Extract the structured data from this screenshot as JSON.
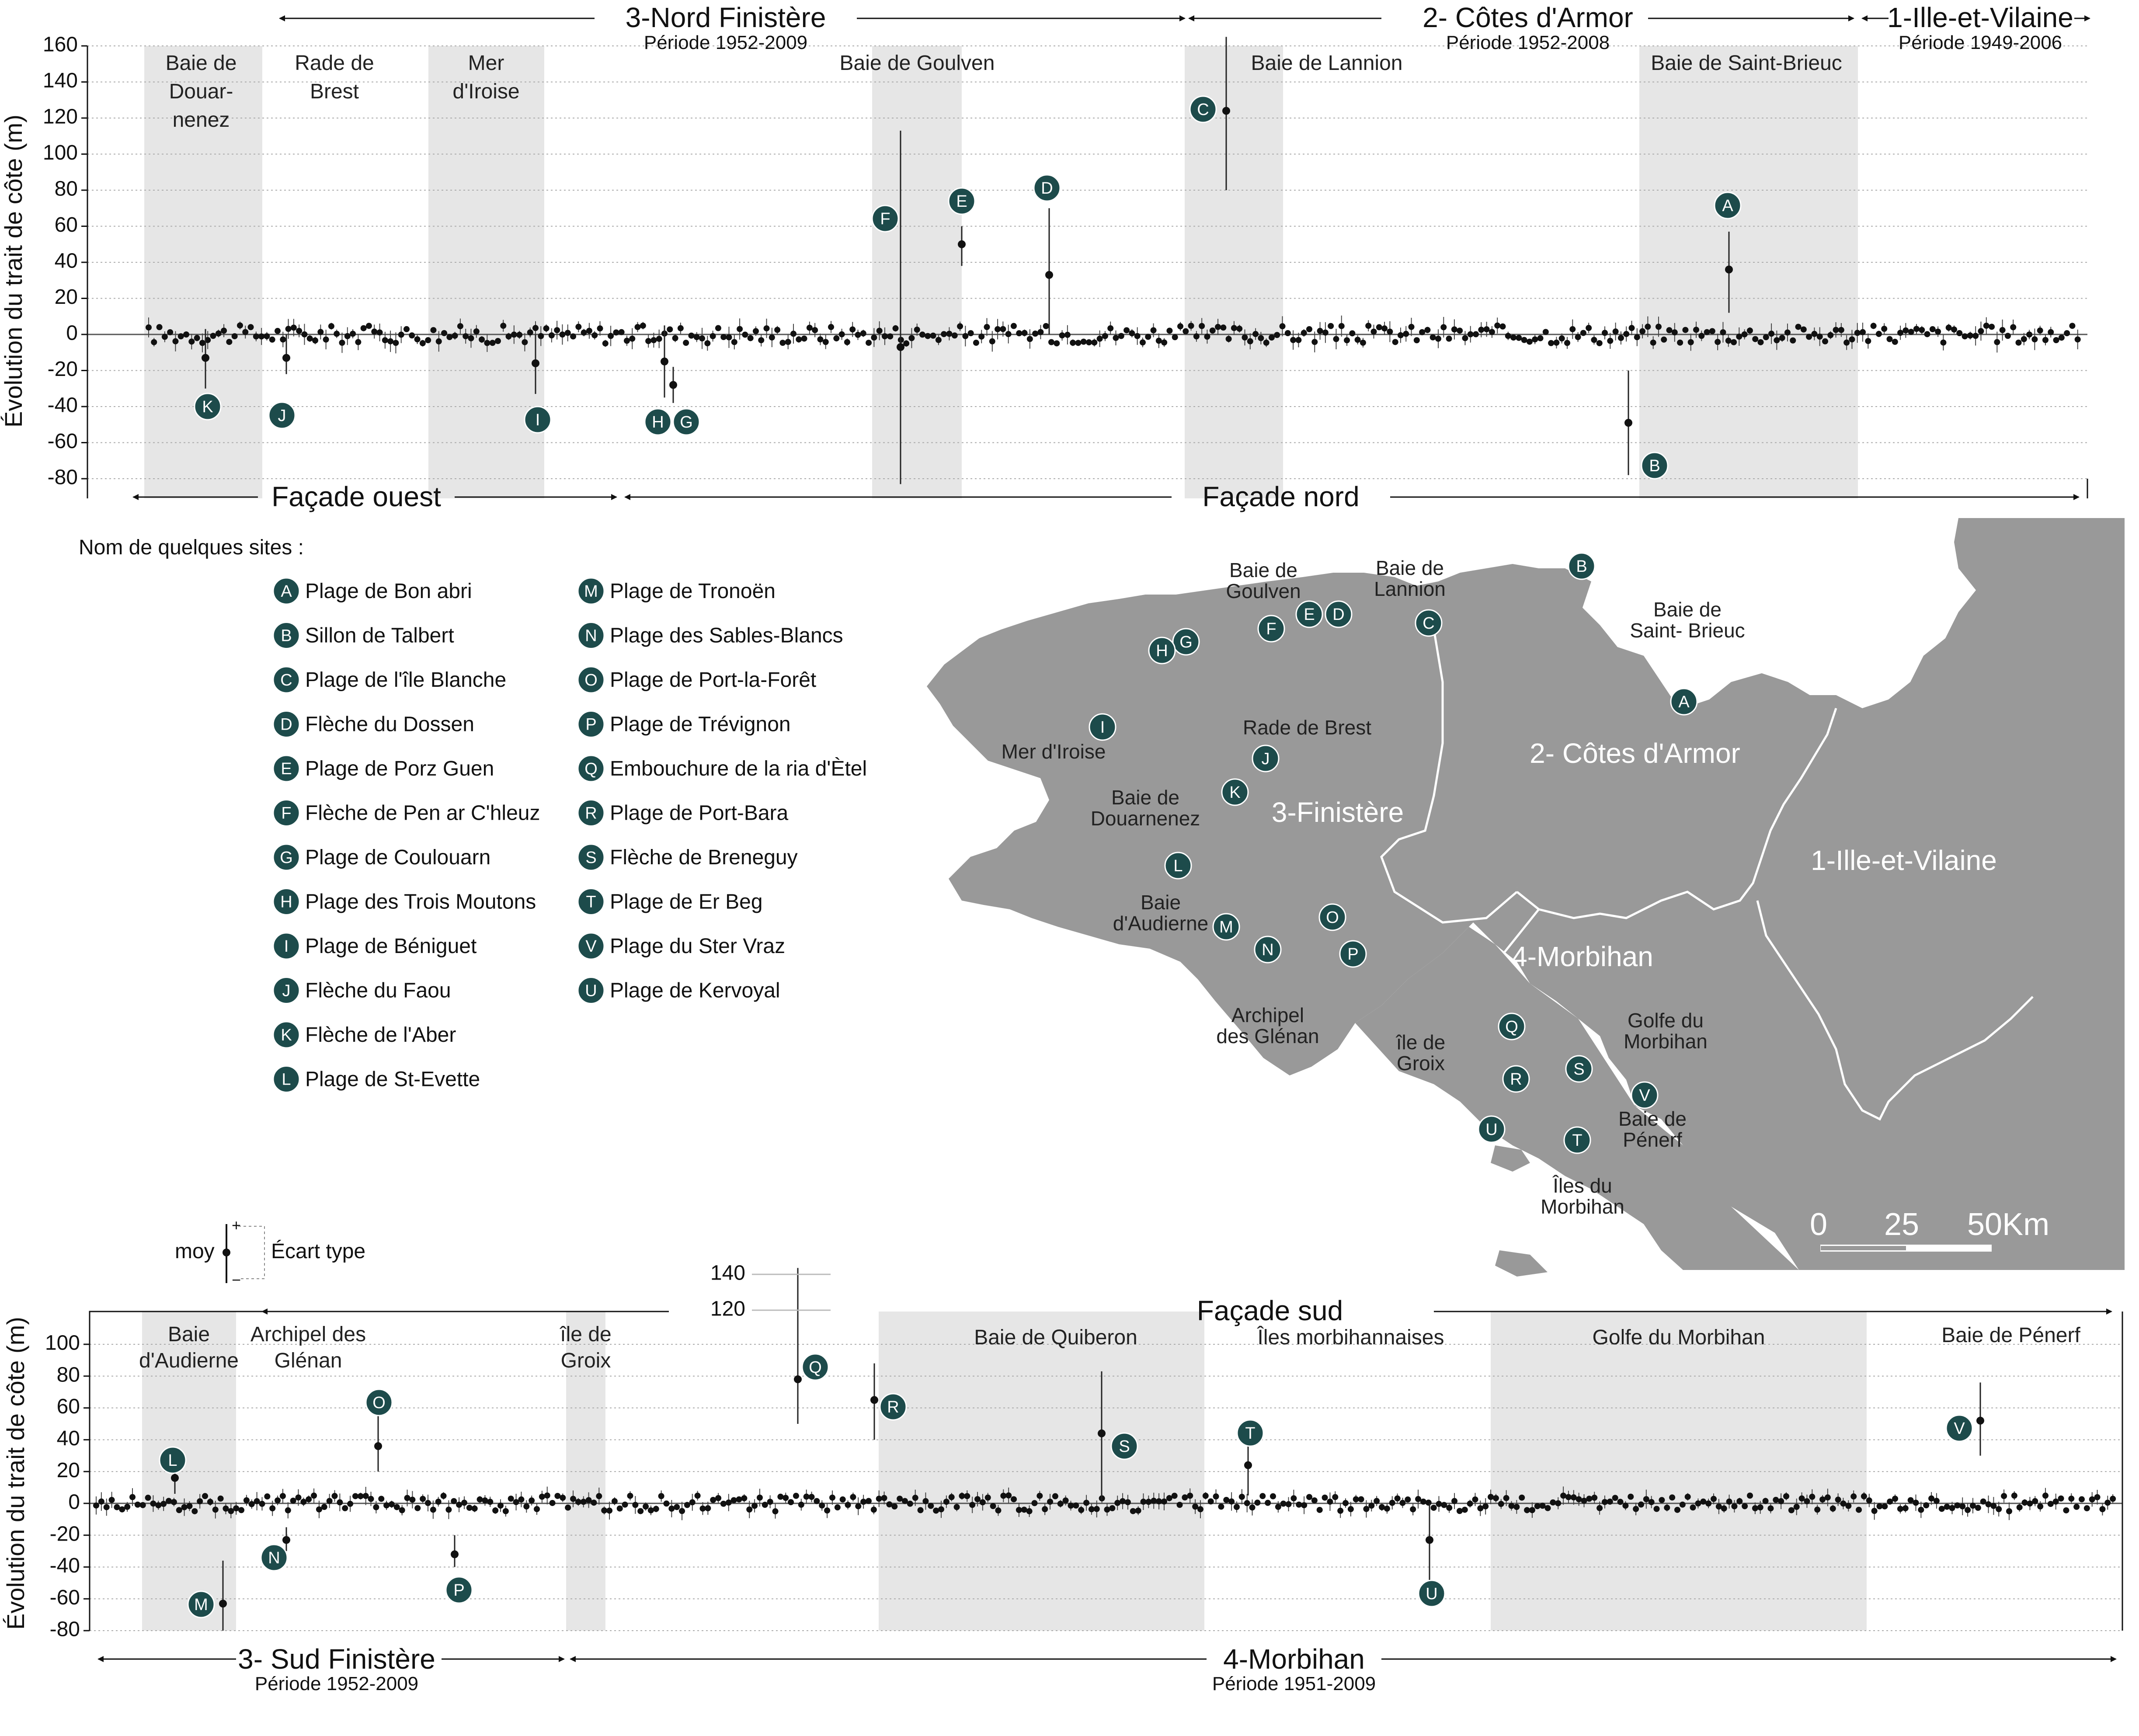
{
  "legend": {
    "title": "Nom de quelques sites :",
    "sites": [
      {
        "code": "A",
        "name": "Plage de Bon abri"
      },
      {
        "code": "B",
        "name": "Sillon de Talbert"
      },
      {
        "code": "C",
        "name": "Plage de l'île Blanche"
      },
      {
        "code": "D",
        "name": "Flèche du Dossen"
      },
      {
        "code": "E",
        "name": "Plage de Porz Guen"
      },
      {
        "code": "F",
        "name": "Flèche de Pen ar C'hleuz"
      },
      {
        "code": "G",
        "name": "Plage de Coulouarn"
      },
      {
        "code": "H",
        "name": "Plage des Trois Moutons"
      },
      {
        "code": "I",
        "name": "Plage de Béniguet"
      },
      {
        "code": "J",
        "name": "Flèche du Faou"
      },
      {
        "code": "K",
        "name": "Flèche de l'Aber"
      },
      {
        "code": "L",
        "name": "Plage de St-Evette"
      },
      {
        "code": "M",
        "name": "Plage de Tronoën"
      },
      {
        "code": "N",
        "name": "Plage des Sables-Blancs"
      },
      {
        "code": "O",
        "name": "Plage de Port-la-Forêt"
      },
      {
        "code": "P",
        "name": "Plage de Trévignon"
      },
      {
        "code": "Q",
        "name": "Embouchure de la ria d'Ètel"
      },
      {
        "code": "R",
        "name": "Plage de Port-Bara"
      },
      {
        "code": "S",
        "name": "Flèche de Breneguy"
      },
      {
        "code": "T",
        "name": "Plage de Er Beg"
      },
      {
        "code": "V",
        "name": "Plage du Ster Vraz"
      },
      {
        "code": "U",
        "name": "Plage de Kervoyal"
      }
    ],
    "key": {
      "mean": "moy",
      "stddev": "Écart type",
      "plus": "+",
      "minus": "−"
    }
  },
  "map": {
    "departments": [
      "2- Côtes d'Armor",
      "3-Finistère",
      "4-Morbihan",
      "1-Ille-et-Vilaine"
    ],
    "places": [
      "Baie de Goulven",
      "Baie de Lannion",
      "Baie de Saint- Brieuc",
      "Rade de Brest",
      "Mer d'Iroise",
      "Baie de Douarnenez",
      "Baie d'Audierne",
      "Archipel des Glénan",
      "île de Groix",
      "Golfe du Morbihan",
      "Baie de Pénerf",
      "Îles du Morbihan"
    ],
    "scale": [
      "0",
      "25",
      "50Km"
    ],
    "colors": {
      "land": "#999999",
      "badge": "#1d4b4b"
    }
  },
  "chart_data": [
    {
      "type": "scatter",
      "title": "",
      "ylabel": "Évolution du trait de côte (m)",
      "ylim": [
        -80,
        160
      ],
      "yticks": [
        160,
        140,
        120,
        100,
        80,
        60,
        40,
        20,
        0,
        -20,
        -40,
        -60,
        -80
      ],
      "headers": [
        {
          "title": "3-Nord Finistère",
          "period": "Période 1952-2009"
        },
        {
          "title": "2- Côtes d'Armor",
          "period": "Période 1952-2008"
        },
        {
          "title": "1-Ille-et-Vilaine",
          "period": "Période 1949-2006"
        }
      ],
      "facades": [
        "Façade ouest",
        "Façade nord"
      ],
      "bands": [
        {
          "label": "Baie de Douar-nenez",
          "shaded": true
        },
        {
          "label": "Rade de Brest",
          "shaded": false
        },
        {
          "label": "Mer d'Iroise",
          "shaded": true
        },
        {
          "label": "Baie de Goulven",
          "shaded": true
        },
        {
          "label": "Baie de Lannion",
          "shaded": true
        },
        {
          "label": "Baie de Saint-Brieuc",
          "shaded": true
        }
      ],
      "annotated_points": [
        {
          "code": "K",
          "mean": -13,
          "sd_low": -30,
          "sd_high": 3
        },
        {
          "code": "J",
          "mean": -13,
          "sd_low": -22,
          "sd_high": 0
        },
        {
          "code": "I",
          "mean": -16,
          "sd_low": -33,
          "sd_high": 0
        },
        {
          "code": "H",
          "mean": -15,
          "sd_low": -35,
          "sd_high": 5
        },
        {
          "code": "G",
          "mean": -28,
          "sd_low": -38,
          "sd_high": -18
        },
        {
          "code": "F",
          "mean": -7,
          "sd_low": -83,
          "sd_high": 113
        },
        {
          "code": "E",
          "mean": 50,
          "sd_low": 38,
          "sd_high": 60
        },
        {
          "code": "D",
          "mean": 33,
          "sd_low": 0,
          "sd_high": 70
        },
        {
          "code": "C",
          "mean": 124,
          "sd_low": 80,
          "sd_high": 165
        },
        {
          "code": "A",
          "mean": 36,
          "sd_low": 12,
          "sd_high": 57
        },
        {
          "code": "B",
          "mean": -49,
          "sd_low": -78,
          "sd_high": -20
        }
      ]
    },
    {
      "type": "scatter",
      "title": "",
      "ylabel": "Évolution du trait de côte (m)",
      "ylim": [
        -80,
        100
      ],
      "yticks": [
        100,
        80,
        60,
        40,
        20,
        0,
        -20,
        -40,
        -60,
        -80
      ],
      "extra_ticks": [
        140,
        120
      ],
      "facades": [
        "Façade sud"
      ],
      "footers": [
        {
          "title": "3- Sud Finistère",
          "period": "Période 1952-2009"
        },
        {
          "title": "4-Morbihan",
          "period": "Période 1951-2009"
        }
      ],
      "bands": [
        {
          "label": "Baie d'Audierne",
          "shaded": true
        },
        {
          "label": "Archipel des Glénan",
          "shaded": false
        },
        {
          "label": "île de Groix",
          "shaded": true
        },
        {
          "label": "Baie de Quiberon",
          "shaded": true
        },
        {
          "label": "Îles morbihannaises",
          "shaded": false
        },
        {
          "label": "Golfe du Morbihan",
          "shaded": true
        },
        {
          "label": "Baie de Pénerf",
          "shaded": false
        }
      ],
      "annotated_points": [
        {
          "code": "L",
          "mean": 16,
          "sd_low": 6,
          "sd_high": 27
        },
        {
          "code": "M",
          "mean": -63,
          "sd_low": -80,
          "sd_high": -36
        },
        {
          "code": "N",
          "mean": -23,
          "sd_low": -30,
          "sd_high": -15
        },
        {
          "code": "O",
          "mean": 36,
          "sd_low": 20,
          "sd_high": 57
        },
        {
          "code": "P",
          "mean": -32,
          "sd_low": -40,
          "sd_high": -20
        },
        {
          "code": "Q",
          "mean": 78,
          "sd_low": 50,
          "sd_high": 148
        },
        {
          "code": "R",
          "mean": 65,
          "sd_low": 40,
          "sd_high": 88
        },
        {
          "code": "S",
          "mean": 44,
          "sd_low": 2,
          "sd_high": 83
        },
        {
          "code": "T",
          "mean": 24,
          "sd_low": 5,
          "sd_high": 40
        },
        {
          "code": "U",
          "mean": -23,
          "sd_low": -55,
          "sd_high": 0
        },
        {
          "code": "V",
          "mean": 52,
          "sd_low": 30,
          "sd_high": 76
        }
      ]
    }
  ]
}
